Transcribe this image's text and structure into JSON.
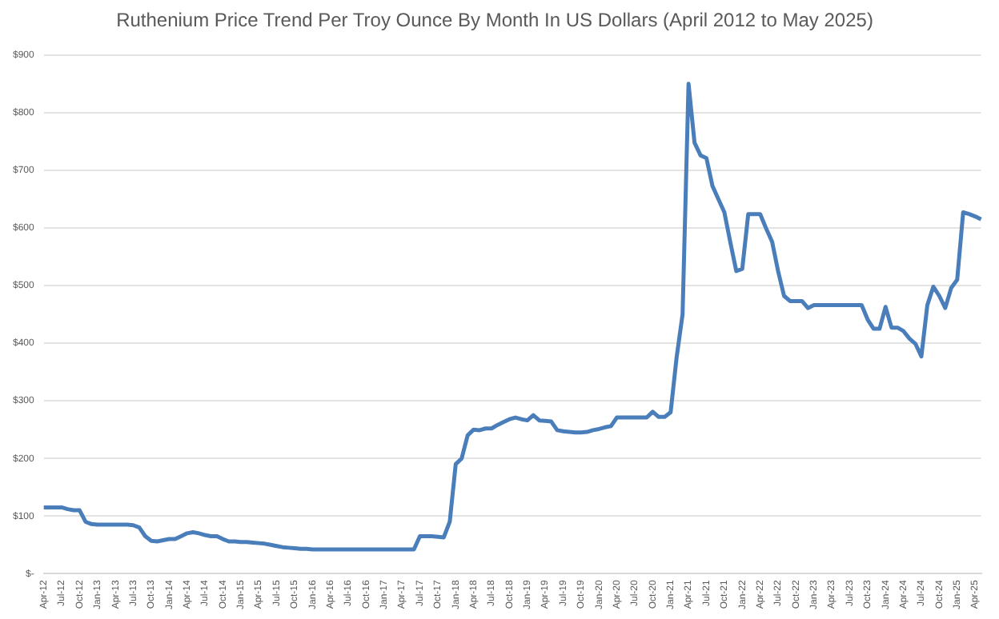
{
  "chart_data": {
    "type": "line",
    "title": "Ruthenium Price Trend Per Troy Ounce By Month In US Dollars (April 2012 to May 2025)",
    "categories": [
      "Apr-12",
      null,
      null,
      "Jul-12",
      null,
      null,
      "Oct-12",
      null,
      null,
      "Jan-13",
      null,
      null,
      "Apr-13",
      null,
      null,
      "Jul-13",
      null,
      null,
      "Oct-13",
      null,
      null,
      "Jan-14",
      null,
      null,
      "Apr-14",
      null,
      null,
      "Jul-14",
      null,
      null,
      "Oct-14",
      null,
      null,
      "Jan-15",
      null,
      null,
      "Apr-15",
      null,
      null,
      "Jul-15",
      null,
      null,
      "Oct-15",
      null,
      null,
      "Jan-16",
      null,
      null,
      "Apr-16",
      null,
      null,
      "Jul-16",
      null,
      null,
      "Oct-16",
      null,
      null,
      "Jan-17",
      null,
      null,
      "Apr-17",
      null,
      null,
      "Jul-17",
      null,
      null,
      "Oct-17",
      null,
      null,
      "Jan-18",
      null,
      null,
      "Apr-18",
      null,
      null,
      "Jul-18",
      null,
      null,
      "Oct-18",
      null,
      null,
      "Jan-19",
      null,
      null,
      "Apr-19",
      null,
      null,
      "Jul-19",
      null,
      null,
      "Oct-19",
      null,
      null,
      "Jan-20",
      null,
      null,
      "Apr-20",
      null,
      null,
      "Jul-20",
      null,
      null,
      "Oct-20",
      null,
      null,
      "Jan-21",
      null,
      null,
      "Apr-21",
      null,
      null,
      "Jul-21",
      null,
      null,
      "Oct-21",
      null,
      null,
      "Jan-22",
      null,
      null,
      "Apr-22",
      null,
      null,
      "Jul-22",
      null,
      null,
      "Oct-22",
      null,
      null,
      "Jan-23",
      null,
      null,
      "Apr-23",
      null,
      null,
      "Jul-23",
      null,
      null,
      "Oct-23",
      null,
      null,
      "Jan-24",
      null,
      null,
      "Apr-24",
      null,
      null,
      "Jul-24",
      null,
      null,
      "Oct-24",
      null,
      null,
      "Jan-25",
      null,
      null,
      "Apr-25",
      null
    ],
    "series": [
      {
        "color": "#4a7ebb",
        "values": [
          115,
          115,
          115,
          115,
          112,
          110,
          110,
          90,
          86,
          85,
          85,
          85,
          85,
          85,
          85,
          84,
          80,
          65,
          57,
          56,
          58,
          60,
          60,
          65,
          70,
          72,
          70,
          67,
          65,
          65,
          60,
          56,
          56,
          55,
          55,
          54,
          53,
          52,
          50,
          48,
          46,
          45,
          44,
          43,
          43,
          42,
          42,
          42,
          42,
          42,
          42,
          42,
          42,
          42,
          42,
          42,
          42,
          42,
          42,
          42,
          42,
          42,
          42,
          65,
          65,
          65,
          64,
          63,
          90,
          190,
          200,
          240,
          250,
          249,
          252,
          252,
          258,
          263,
          268,
          271,
          268,
          266,
          275,
          266,
          265,
          264,
          249,
          247,
          246,
          245,
          245,
          246,
          249,
          251,
          254,
          256,
          271,
          271,
          271,
          271,
          271,
          271,
          281,
          272,
          272,
          280,
          375,
          450,
          850,
          748,
          726,
          721,
          673,
          650,
          627,
          575,
          525,
          529,
          624,
          624,
          624,
          599,
          576,
          525,
          482,
          473,
          473,
          473,
          461,
          466,
          466,
          466,
          466,
          466,
          466,
          466,
          466,
          466,
          441,
          425,
          425,
          463,
          427,
          427,
          421,
          408,
          399,
          377,
          466,
          498,
          482,
          461,
          496,
          510,
          627,
          624,
          620,
          615
        ]
      }
    ],
    "ylim": [
      0,
      900
    ],
    "yticks": [
      {
        "value": 0,
        "label": "$-"
      },
      {
        "value": 100,
        "label": "$100"
      },
      {
        "value": 200,
        "label": "$200"
      },
      {
        "value": 300,
        "label": "$300"
      },
      {
        "value": 400,
        "label": "$400"
      },
      {
        "value": 500,
        "label": "$500"
      },
      {
        "value": 600,
        "label": "$600"
      },
      {
        "value": 700,
        "label": "$700"
      },
      {
        "value": 800,
        "label": "$800"
      },
      {
        "value": 900,
        "label": "$900"
      }
    ],
    "grid": "y",
    "marker": "none",
    "line_style": "solid",
    "legend": false
  }
}
